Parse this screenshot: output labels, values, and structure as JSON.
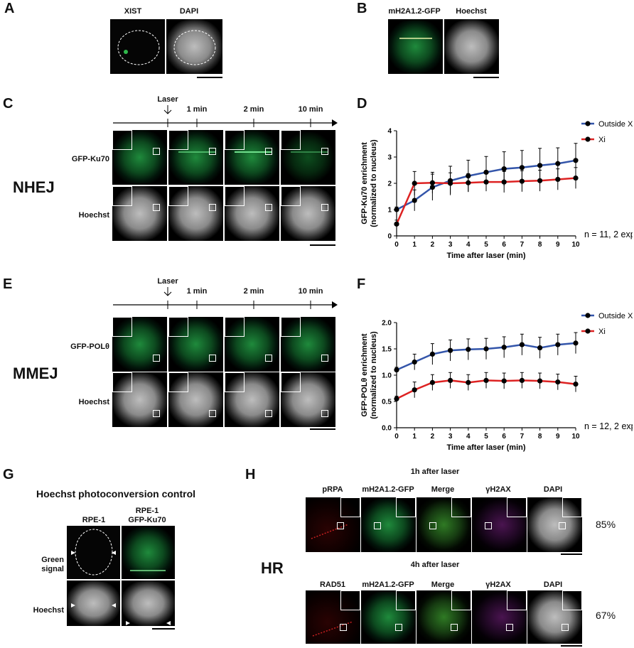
{
  "panels": {
    "A": {
      "letter": "A",
      "labels": [
        "XIST",
        "DAPI"
      ]
    },
    "B": {
      "letter": "B",
      "labels": [
        "mH2A1.2-GFP",
        "Hoechst"
      ]
    },
    "C": {
      "letter": "C",
      "rows": [
        "GFP-Ku70",
        "Hoechst"
      ],
      "side": "NHEJ",
      "timeline": {
        "laser": "Laser",
        "t1": "1 min",
        "t2": "2 min",
        "t3": "10 min"
      }
    },
    "E": {
      "letter": "E",
      "rows": [
        "GFP-POLθ",
        "Hoechst"
      ],
      "side": "MMEJ",
      "timeline": {
        "laser": "Laser",
        "t1": "1 min",
        "t2": "2 min",
        "t3": "10 min"
      }
    },
    "G": {
      "letter": "G",
      "title": "Hoechst photoconversion control",
      "cols": [
        "RPE-1",
        "RPE-1\nGFP-Ku70"
      ],
      "rows": [
        "Green\nsignal",
        "Hoechst"
      ]
    },
    "H": {
      "letter": "H",
      "side": "HR",
      "top": {
        "title": "1h after laser",
        "cols": [
          "pRPA",
          "mH2A1.2-GFP",
          "Merge",
          "γH2AX",
          "DAPI"
        ],
        "pct": "85%"
      },
      "bottom": {
        "title": "4h after laser",
        "cols": [
          "RAD51",
          "mH2A1.2-GFP",
          "Merge",
          "γH2AX",
          "DAPI"
        ],
        "pct": "67%"
      }
    }
  },
  "chart_data": [
    {
      "id": "D",
      "letter": "D",
      "type": "line",
      "xlabel": "Time after laser (min)",
      "ylabel": "GFP-Ku70 enrichment (normalized to nucleus)",
      "xlim": [
        0,
        10
      ],
      "ylim": [
        0,
        4
      ],
      "xticks": [
        0,
        1,
        2,
        3,
        4,
        5,
        6,
        7,
        8,
        9,
        10
      ],
      "yticks": [
        0,
        1,
        2,
        3,
        4
      ],
      "legend": "top-right",
      "note": "n = 11, 2 exp",
      "x": [
        0,
        1,
        2,
        3,
        4,
        5,
        6,
        7,
        8,
        9,
        10
      ],
      "series": [
        {
          "name": "Outside Xi",
          "color": "#3355aa",
          "values": [
            1.0,
            1.35,
            1.85,
            2.1,
            2.28,
            2.42,
            2.55,
            2.6,
            2.68,
            2.75,
            2.87
          ],
          "err": [
            0.1,
            0.4,
            0.5,
            0.55,
            0.6,
            0.6,
            0.65,
            0.65,
            0.65,
            0.6,
            0.65
          ]
        },
        {
          "name": "Xi",
          "color": "#dd2222",
          "values": [
            0.45,
            2.0,
            2.02,
            2.0,
            2.02,
            2.05,
            2.05,
            2.08,
            2.1,
            2.15,
            2.2
          ],
          "err": [
            0.15,
            0.45,
            0.4,
            0.4,
            0.35,
            0.35,
            0.4,
            0.4,
            0.4,
            0.4,
            0.4
          ]
        }
      ]
    },
    {
      "id": "F",
      "letter": "F",
      "type": "line",
      "xlabel": "Time after laser (min)",
      "ylabel": "GFP-POLθ enrichment (normalized to nucleus)",
      "xlim": [
        0,
        10
      ],
      "ylim": [
        0,
        2.0
      ],
      "xticks": [
        0,
        1,
        2,
        3,
        4,
        5,
        6,
        7,
        8,
        9,
        10
      ],
      "yticks": [
        "0.0",
        "0.5",
        "1.0",
        "1.5",
        "2.0"
      ],
      "legend": "top-right",
      "note": "n = 12, 2 exp",
      "x": [
        0,
        1,
        2,
        3,
        4,
        5,
        6,
        7,
        8,
        9,
        10
      ],
      "series": [
        {
          "name": "Outside Xi",
          "color": "#3355aa",
          "values": [
            1.1,
            1.25,
            1.4,
            1.47,
            1.49,
            1.5,
            1.53,
            1.58,
            1.52,
            1.58,
            1.61
          ],
          "err": [
            0.05,
            0.15,
            0.2,
            0.2,
            0.2,
            0.2,
            0.2,
            0.2,
            0.2,
            0.2,
            0.2
          ]
        },
        {
          "name": "Xi",
          "color": "#dd2222",
          "values": [
            0.55,
            0.72,
            0.86,
            0.9,
            0.86,
            0.9,
            0.89,
            0.9,
            0.89,
            0.87,
            0.83
          ],
          "err": [
            0.05,
            0.15,
            0.15,
            0.15,
            0.15,
            0.15,
            0.15,
            0.15,
            0.15,
            0.15,
            0.15
          ]
        }
      ]
    }
  ]
}
